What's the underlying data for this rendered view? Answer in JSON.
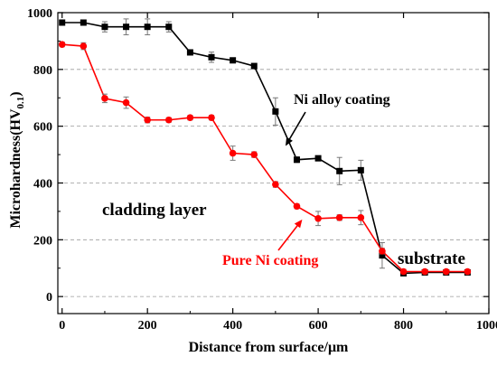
{
  "chart_data": {
    "type": "line",
    "xlabel": "Distance from surface/μm",
    "ylabel_main": "Microhardness(HV",
    "ylabel_sub": "0.1",
    "ylabel_close": ")",
    "xlim": [
      -10,
      1000
    ],
    "ylim": [
      -60,
      1000
    ],
    "xticks": [
      0,
      200,
      400,
      600,
      800,
      1000
    ],
    "yticks": [
      0,
      200,
      400,
      600,
      800,
      1000
    ],
    "grid": "horizontal dashed",
    "series": [
      {
        "name": "Ni alloy coating",
        "color": "#000000",
        "marker": "square",
        "x": [
          0,
          50,
          100,
          150,
          200,
          250,
          300,
          350,
          400,
          450,
          500,
          550,
          600,
          650,
          700,
          750,
          800,
          850,
          900,
          950
        ],
        "y": [
          965,
          965,
          950,
          950,
          950,
          950,
          860,
          843,
          832,
          812,
          652,
          482,
          487,
          442,
          445,
          145,
          82,
          85,
          85,
          85
        ],
        "err": [
          6,
          6,
          18,
          28,
          28,
          18,
          8,
          18,
          8,
          8,
          48,
          10,
          8,
          48,
          35,
          45,
          8,
          5,
          5,
          5
        ]
      },
      {
        "name": "Pure Ni coating",
        "color": "#ff0000",
        "marker": "circle",
        "x": [
          0,
          50,
          100,
          150,
          200,
          250,
          300,
          350,
          400,
          450,
          500,
          550,
          600,
          650,
          700,
          750,
          800,
          850,
          900,
          950
        ],
        "y": [
          888,
          882,
          698,
          683,
          622,
          622,
          630,
          630,
          505,
          500,
          395,
          318,
          275,
          278,
          278,
          160,
          88,
          88,
          88,
          88
        ],
        "err": [
          8,
          12,
          15,
          20,
          10,
          8,
          8,
          8,
          25,
          10,
          10,
          8,
          25,
          10,
          25,
          10,
          8,
          5,
          5,
          5
        ]
      }
    ],
    "annotations": {
      "ni_alloy": "Ni alloy coating",
      "pure_ni": "Pure Ni coating",
      "cladding": "cladding layer",
      "substrate": "substrate"
    }
  }
}
